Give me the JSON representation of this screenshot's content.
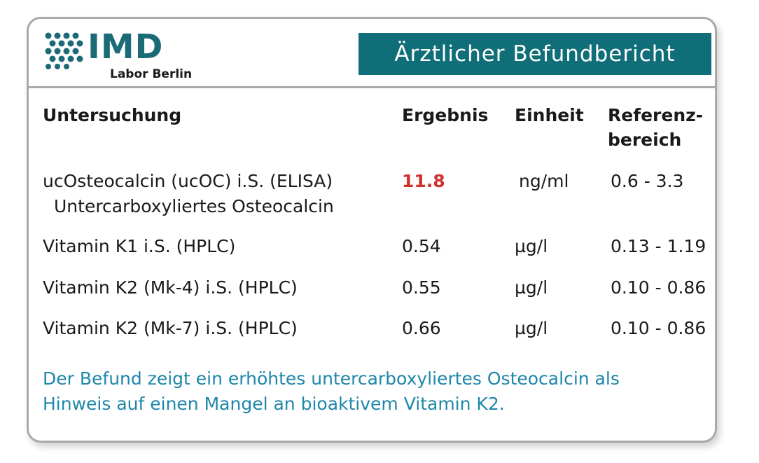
{
  "logo": {
    "name": "IMD",
    "subtitle": "Labor Berlin"
  },
  "banner": {
    "title": "Ärztlicher Befundbericht"
  },
  "table": {
    "headers": {
      "test": "Untersuchung",
      "result": "Ergebnis",
      "unit": "Einheit",
      "reference_line1": "Referenz-",
      "reference_line2": "bereich"
    },
    "rows": [
      {
        "test": "ucOsteocalcin (ucOC) i.S. (ELISA)",
        "test_sub": "Untercarboxyliertes Osteocalcin",
        "result": "11.8",
        "unit": "ng/ml",
        "reference": "0.6 - 3.3",
        "flag": "high"
      },
      {
        "test": "Vitamin K1 i.S. (HPLC)",
        "result": "0.54",
        "unit": "µg/l",
        "reference": "0.13 - 1.19"
      },
      {
        "test": "Vitamin K2 (Mk-4)  i.S. (HPLC)",
        "result": "0.55",
        "unit": "µg/l",
        "reference": "0.10 - 0.86"
      },
      {
        "test": "Vitamin K2 (Mk-7)  i.S. (HPLC)",
        "result": "0.66",
        "unit": "µg/l",
        "reference": "0.10 - 0.86"
      }
    ]
  },
  "note": {
    "line1": "Der Befund zeigt ein erhöhtes untercarboxyliertes Osteocalcin als",
    "line2": "Hinweis auf einen Mangel an bioaktivem Vitamin K2."
  },
  "colors": {
    "brand": "#106e78",
    "highlight": "#d32f2f",
    "note": "#1f87aa"
  }
}
